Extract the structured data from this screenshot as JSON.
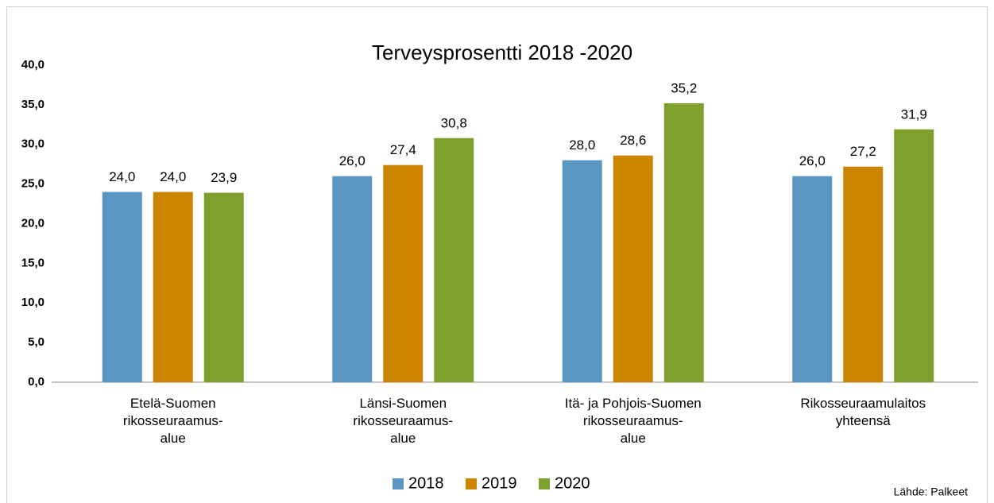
{
  "chart_data": {
    "type": "bar",
    "title": "Terveysprosentti 2018 -2020",
    "categories": [
      "Etelä-Suomen\nrikosseuraamus-\nalue",
      "Länsi-Suomen\nrikosseuraamus-\nalue",
      "Itä- ja Pohjois-Suomen\nrikosseuraamus-\nalue",
      "Rikosseuraamulaitos\nyhteensä"
    ],
    "series": [
      {
        "name": "2018",
        "color": "#5b96c2",
        "values": [
          24.0,
          26.0,
          28.0,
          26.0
        ],
        "value_labels": [
          "24,0",
          "26,0",
          "28,0",
          "26,0"
        ]
      },
      {
        "name": "2019",
        "color": "#cc8500",
        "values": [
          24.0,
          27.4,
          28.6,
          27.2
        ],
        "value_labels": [
          "24,0",
          "27,4",
          "28,6",
          "27,2"
        ]
      },
      {
        "name": "2020",
        "color": "#7ea12e",
        "values": [
          23.9,
          30.8,
          35.2,
          31.9
        ],
        "value_labels": [
          "23,9",
          "30,8",
          "35,2",
          "31,9"
        ]
      }
    ],
    "ylim": [
      0,
      40
    ],
    "yticks": [
      {
        "value": 0,
        "label": "0,0"
      },
      {
        "value": 5,
        "label": "5,0"
      },
      {
        "value": 10,
        "label": "10,0"
      },
      {
        "value": 15,
        "label": "15,0"
      },
      {
        "value": 20,
        "label": "20,0"
      },
      {
        "value": 25,
        "label": "25,0"
      },
      {
        "value": 30,
        "label": "30,0"
      },
      {
        "value": 35,
        "label": "35,0"
      },
      {
        "value": 40,
        "label": "40,0"
      }
    ],
    "grid": false,
    "legend": "bottom",
    "source": "Lähde: Palkeet"
  }
}
